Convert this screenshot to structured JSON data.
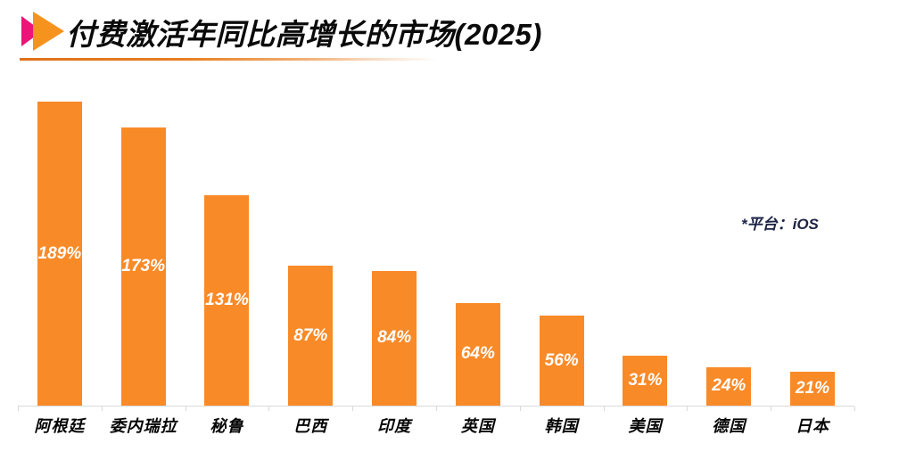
{
  "page": {
    "background": "#ffffff"
  },
  "header": {
    "title": "付费激活年同比高增长的市场(2025)",
    "icon": "double-triangle-arrow",
    "accent_pink": "#EC1379",
    "accent_orange": "#F6921E",
    "underline_color": "#E1701A"
  },
  "annotation": {
    "platform_note": "*平台：iOS"
  },
  "chart_data": {
    "type": "bar",
    "title": "付费激活年同比高增长的市场(2025)",
    "categories": [
      "阿根廷",
      "委内瑞拉",
      "秘鲁",
      "巴西",
      "印度",
      "英国",
      "韩国",
      "美国",
      "德国",
      "日本"
    ],
    "values": [
      189,
      173,
      131,
      87,
      84,
      64,
      56,
      31,
      24,
      21
    ],
    "value_labels": [
      "189%",
      "173%",
      "131%",
      "87%",
      "84%",
      "64%",
      "56%",
      "31%",
      "24%",
      "21%"
    ],
    "xlabel": "",
    "ylabel": "",
    "ylim": [
      0,
      197
    ],
    "bar_color": "#F98A28",
    "value_label_color": "#FFFFFF",
    "axis_color": "#D9D9D9",
    "grid": false,
    "legend": "none",
    "note": "*平台：iOS"
  }
}
